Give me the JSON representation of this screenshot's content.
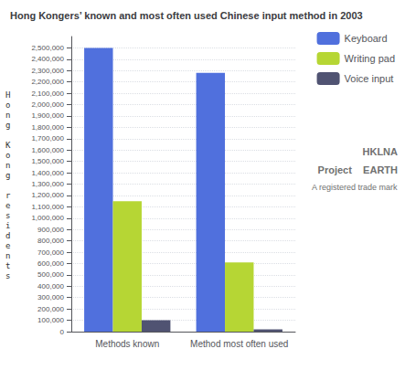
{
  "chart_data": {
    "type": "bar",
    "title": "Hong Kongers’ known and most often used Chinese input method in 2003",
    "ylabel": "Hong Kong residents",
    "categories": [
      "Methods known",
      "Method most often used"
    ],
    "series": [
      {
        "name": "Keyboard",
        "values": [
          2500000,
          2280000
        ]
      },
      {
        "name": "Writing pad",
        "values": [
          1150000,
          610000
        ]
      },
      {
        "name": "Voice input",
        "values": [
          100000,
          20000
        ]
      }
    ],
    "ylim": [
      0,
      2600000
    ],
    "yticks": [
      0,
      {
        "value": 100000,
        "label": "100,000"
      },
      {
        "value": 200000,
        "label": "200,000"
      },
      {
        "value": 300000,
        "label": "300,000"
      },
      {
        "value": 400000,
        "label": "400,000"
      },
      {
        "value": 500000,
        "label": "500,000"
      },
      {
        "value": 600000,
        "label": "600,000"
      },
      {
        "value": 700000,
        "label": "700,000"
      },
      {
        "value": 800000,
        "label": "800,000"
      },
      {
        "value": 900000,
        "label": "900,000"
      },
      {
        "value": 1000000,
        "label": "1,000,000"
      },
      {
        "value": 1100000,
        "label": "1,100,000"
      },
      {
        "value": 1200000,
        "label": "1,200,000"
      },
      {
        "value": 1300000,
        "label": "1,300,000"
      },
      {
        "value": 1400000,
        "label": "1,400,000"
      },
      {
        "value": 1500000,
        "label": "1,500,000"
      },
      {
        "value": 1600000,
        "label": "1,600,000"
      },
      {
        "value": 1700000,
        "label": "1,700,000"
      },
      {
        "value": 1800000,
        "label": "1,800,000"
      },
      {
        "value": 1900000,
        "label": "1,900,000"
      },
      {
        "value": 2000000,
        "label": "2,000,000"
      },
      {
        "value": 2100000,
        "label": "2,100,000"
      },
      {
        "value": 2200000,
        "label": "2,200,000"
      },
      {
        "value": 2300000,
        "label": "2,300,000"
      },
      {
        "value": 2400000,
        "label": "2,400,000"
      },
      {
        "value": 2500000,
        "label": "2,500,000"
      }
    ],
    "grid": true,
    "legend": "upper right",
    "annotations": [
      "HKLNA",
      "Project    EARTH",
      "A registered trade mark"
    ]
  }
}
